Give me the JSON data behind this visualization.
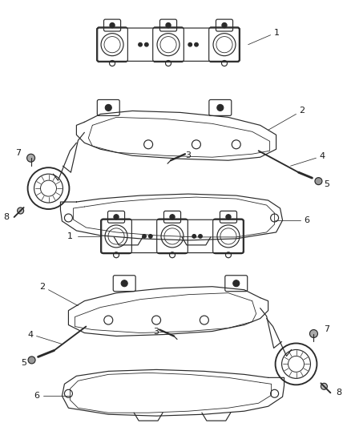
{
  "bg_color": "#ffffff",
  "line_color": "#2a2a2a",
  "label_color": "#1a1a1a",
  "figsize": [
    4.38,
    5.33
  ],
  "dpi": 100,
  "lw": 0.85
}
